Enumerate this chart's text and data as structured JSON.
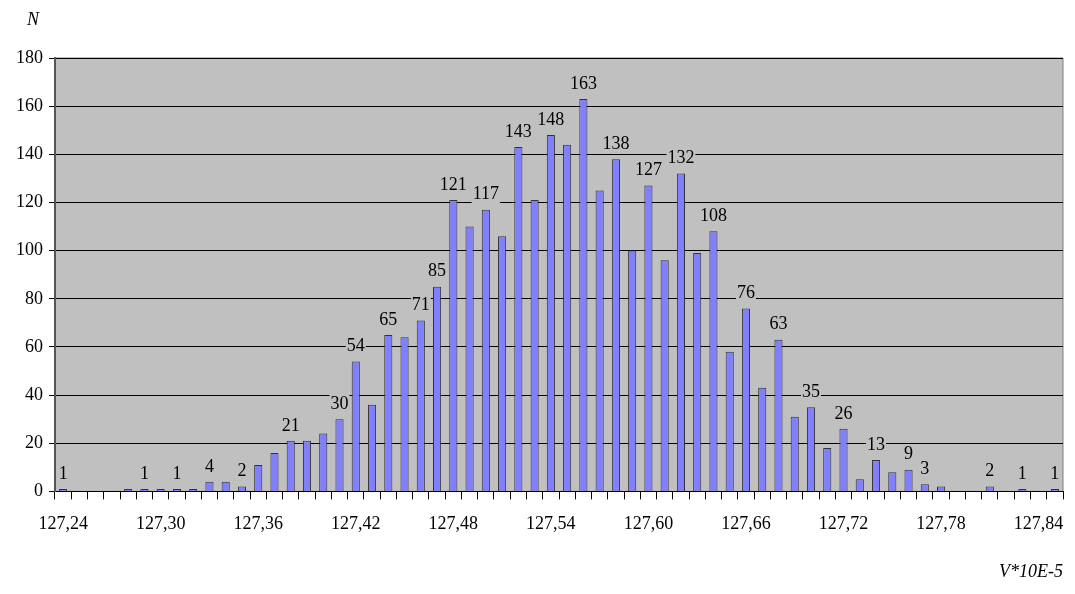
{
  "chart_data": {
    "type": "bar",
    "ylabel": "N",
    "xlabel": "V*10E-5",
    "categories": [
      "127,24",
      null,
      null,
      null,
      null,
      null,
      "127,30",
      null,
      null,
      null,
      null,
      null,
      "127,36",
      null,
      null,
      null,
      null,
      null,
      "127,42",
      null,
      null,
      null,
      null,
      null,
      "127,48",
      null,
      null,
      null,
      null,
      null,
      "127,54",
      null,
      null,
      null,
      null,
      null,
      "127,60",
      null,
      null,
      null,
      null,
      null,
      "127,66",
      null,
      null,
      null,
      null,
      null,
      "127,72",
      null,
      null,
      null,
      null,
      null,
      "127,78",
      null,
      null,
      null,
      null,
      null,
      "127,84",
      null
    ],
    "values": [
      1,
      0,
      0,
      0,
      1,
      1,
      1,
      1,
      1,
      4,
      4,
      2,
      11,
      16,
      21,
      21,
      24,
      30,
      54,
      36,
      65,
      64,
      71,
      85,
      121,
      110,
      117,
      106,
      143,
      121,
      148,
      144,
      163,
      125,
      138,
      100,
      127,
      96,
      132,
      99,
      108,
      58,
      76,
      43,
      63,
      31,
      35,
      18,
      26,
      5,
      13,
      8,
      9,
      3,
      2,
      0,
      0,
      2,
      0,
      1,
      0,
      1
    ],
    "value_labels": [
      "1",
      null,
      null,
      null,
      null,
      "1",
      null,
      "1",
      null,
      "4",
      null,
      "2",
      null,
      null,
      "21",
      null,
      null,
      "30",
      "54",
      null,
      "65",
      null,
      "71",
      "85",
      "121",
      null,
      "117",
      null,
      "143",
      null,
      "148",
      null,
      "163",
      null,
      "138",
      null,
      "127",
      null,
      "132",
      null,
      "108",
      null,
      "76",
      null,
      "63",
      null,
      "35",
      null,
      "26",
      null,
      "13",
      null,
      "9",
      "3",
      null,
      null,
      null,
      "2",
      null,
      "1",
      null,
      "1"
    ],
    "color": "#8080ff",
    "ylim": [
      0,
      180
    ],
    "yticks": [
      0,
      20,
      40,
      60,
      80,
      100,
      120,
      140,
      160,
      180
    ],
    "grid": "y",
    "legend": false
  }
}
